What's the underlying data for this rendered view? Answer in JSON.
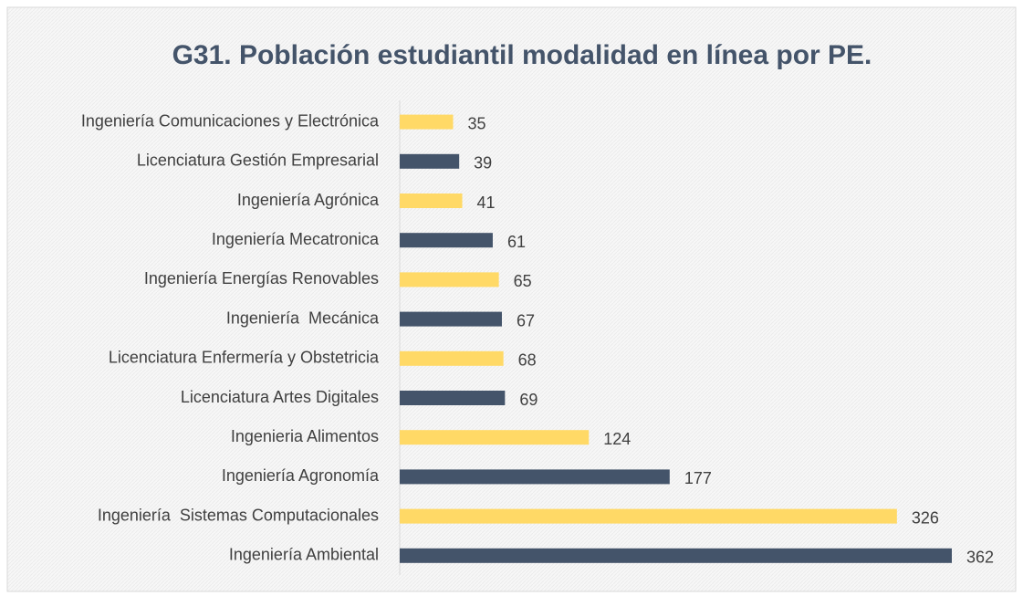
{
  "chart_data": {
    "type": "barh",
    "title": "G31. Población estudiantil modalidad en línea por PE.",
    "categories": [
      "Ingeniería Comunicaciones y Electrónica",
      "Licenciatura Gestión Empresarial",
      "Ingeniería Agrónica",
      "Ingeniería Mecatronica",
      "Ingeniería Energías Renovables",
      "Ingeniería  Mecánica",
      "Licenciatura Enfermería y Obstetricia",
      "Licenciatura Artes Digitales",
      "Ingenieria Alimentos",
      "Ingeniería Agronomía",
      "Ingeniería  Sistemas Computacionales",
      "Ingeniería Ambiental"
    ],
    "values": [
      35,
      39,
      41,
      61,
      65,
      67,
      68,
      69,
      124,
      177,
      326,
      362
    ],
    "colors": [
      "#ffd966",
      "#44546a",
      "#ffd966",
      "#44546a",
      "#ffd966",
      "#44546a",
      "#ffd966",
      "#44546a",
      "#ffd966",
      "#44546a",
      "#ffd966",
      "#44546a"
    ]
  }
}
